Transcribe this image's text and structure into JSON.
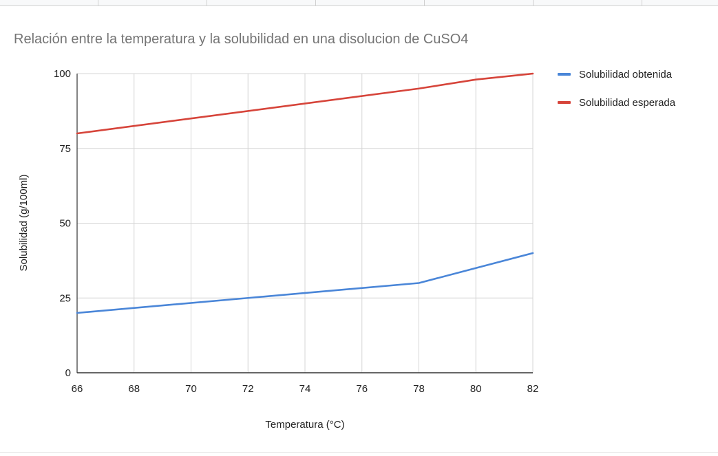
{
  "chart_data": {
    "type": "line",
    "title": "Relación entre la temperatura y la solubilidad en una disolucion de CuSO4",
    "xlabel": "Temperatura (°C)",
    "ylabel": "Solubilidad (g/100ml)",
    "x": [
      66,
      68,
      70,
      72,
      74,
      76,
      78,
      80,
      82
    ],
    "xlim": [
      66,
      82
    ],
    "ylim": [
      0,
      100
    ],
    "xticks": [
      66,
      68,
      70,
      72,
      74,
      76,
      78,
      80,
      82
    ],
    "yticks": [
      0,
      25,
      50,
      75,
      100
    ],
    "grid": true,
    "legend_position": "right",
    "series": [
      {
        "name": "Solubilidad obtenida",
        "color": "#4a86d8",
        "x": [
          66,
          72,
          78,
          80,
          82
        ],
        "values": [
          20,
          25,
          30,
          35,
          40
        ]
      },
      {
        "name": "Solubilidad esperada",
        "color": "#d6443a",
        "x": [
          66,
          78,
          80,
          82
        ],
        "values": [
          80,
          95,
          98,
          100
        ]
      }
    ]
  }
}
